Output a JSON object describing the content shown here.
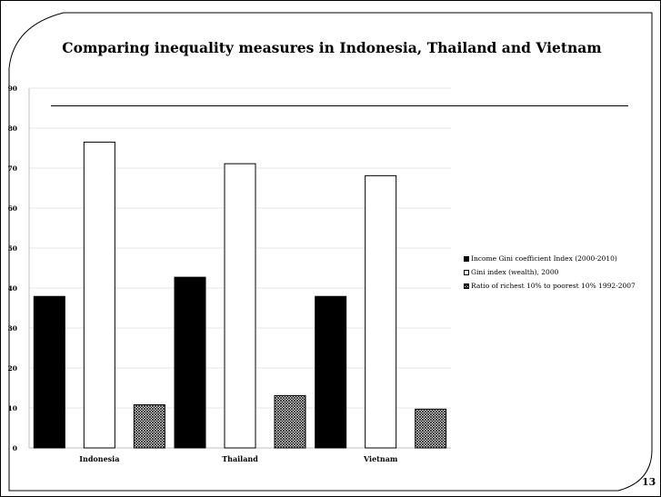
{
  "slide": {
    "title": "Comparing inequality measures in Indonesia, Thailand and Vietnam",
    "page_number": "13"
  },
  "chart_data": {
    "type": "bar",
    "title": "Comparing inequality measures in Indonesia, Thailand and Vietnam",
    "xlabel": "",
    "ylabel": "",
    "categories": [
      "Indonesia",
      "Thailand",
      "Vietnam"
    ],
    "ylim": [
      0,
      90
    ],
    "yticks": [
      "0",
      "10",
      "20",
      "30",
      "40",
      "50",
      "60",
      "70",
      "80",
      "90"
    ],
    "grid": true,
    "legend_position": "right",
    "series": [
      {
        "name": "Income Gini coefficient Index (2000-2010)",
        "values": [
          37.9,
          42.7,
          37.9
        ],
        "color": "#000000",
        "pattern": "solid"
      },
      {
        "name": "Gini index (wealth), 2000",
        "values": [
          76.5,
          71.1,
          68.1
        ],
        "color": "#ffffff",
        "pattern": "outline"
      },
      {
        "name": "Ratio of richest 10% to poorest 10% 1992-2007",
        "values": [
          10.8,
          13.1,
          9.7
        ],
        "color": "#000000",
        "pattern": "crosshatch"
      }
    ]
  }
}
